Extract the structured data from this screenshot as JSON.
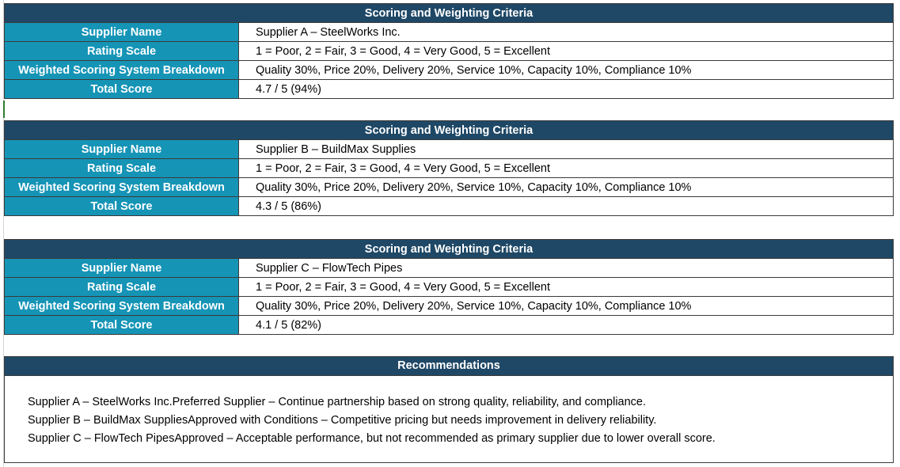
{
  "blocks": [
    {
      "header": "Scoring and Weighting Criteria",
      "rows": [
        {
          "label": "Supplier Name",
          "value": "Supplier A – SteelWorks Inc."
        },
        {
          "label": "Rating Scale",
          "value": "1 = Poor, 2 = Fair, 3 = Good, 4 = Very Good, 5 = Excellent"
        },
        {
          "label": "Weighted Scoring System Breakdown",
          "value": "Quality 30%, Price 20%, Delivery 20%, Service 10%, Capacity 10%, Compliance 10%"
        },
        {
          "label": "Total Score",
          "value": "4.7 / 5 (94%)"
        }
      ]
    },
    {
      "header": "Scoring and Weighting Criteria",
      "rows": [
        {
          "label": "Supplier Name",
          "value": "Supplier B – BuildMax Supplies"
        },
        {
          "label": "Rating Scale",
          "value": "1 = Poor, 2 = Fair, 3 = Good, 4 = Very Good, 5 = Excellent"
        },
        {
          "label": "Weighted Scoring System Breakdown",
          "value": "Quality 30%, Price 20%, Delivery 20%, Service 10%, Capacity 10%, Compliance 10%"
        },
        {
          "label": "Total Score",
          "value": "4.3 / 5 (86%)"
        }
      ]
    },
    {
      "header": "Scoring and Weighting Criteria",
      "rows": [
        {
          "label": "Supplier Name",
          "value": "Supplier C – FlowTech Pipes"
        },
        {
          "label": "Rating Scale",
          "value": "1 = Poor, 2 = Fair, 3 = Good, 4 = Very Good, 5 = Excellent"
        },
        {
          "label": "Weighted Scoring System Breakdown",
          "value": "Quality 30%, Price 20%, Delivery 20%, Service 10%, Capacity 10%, Compliance 10%"
        },
        {
          "label": "Total Score",
          "value": "4.1 / 5 (82%)"
        }
      ]
    }
  ],
  "recommendations": {
    "header": "Recommendations",
    "lines": [
      "Supplier A – SteelWorks Inc.Preferred Supplier – Continue partnership based on strong quality, reliability, and compliance.",
      "Supplier B – BuildMax SuppliesApproved with Conditions – Competitive pricing but needs improvement in delivery reliability.",
      "Supplier C – FlowTech PipesApproved – Acceptable performance, but not recommended as primary supplier due to lower overall score."
    ]
  }
}
